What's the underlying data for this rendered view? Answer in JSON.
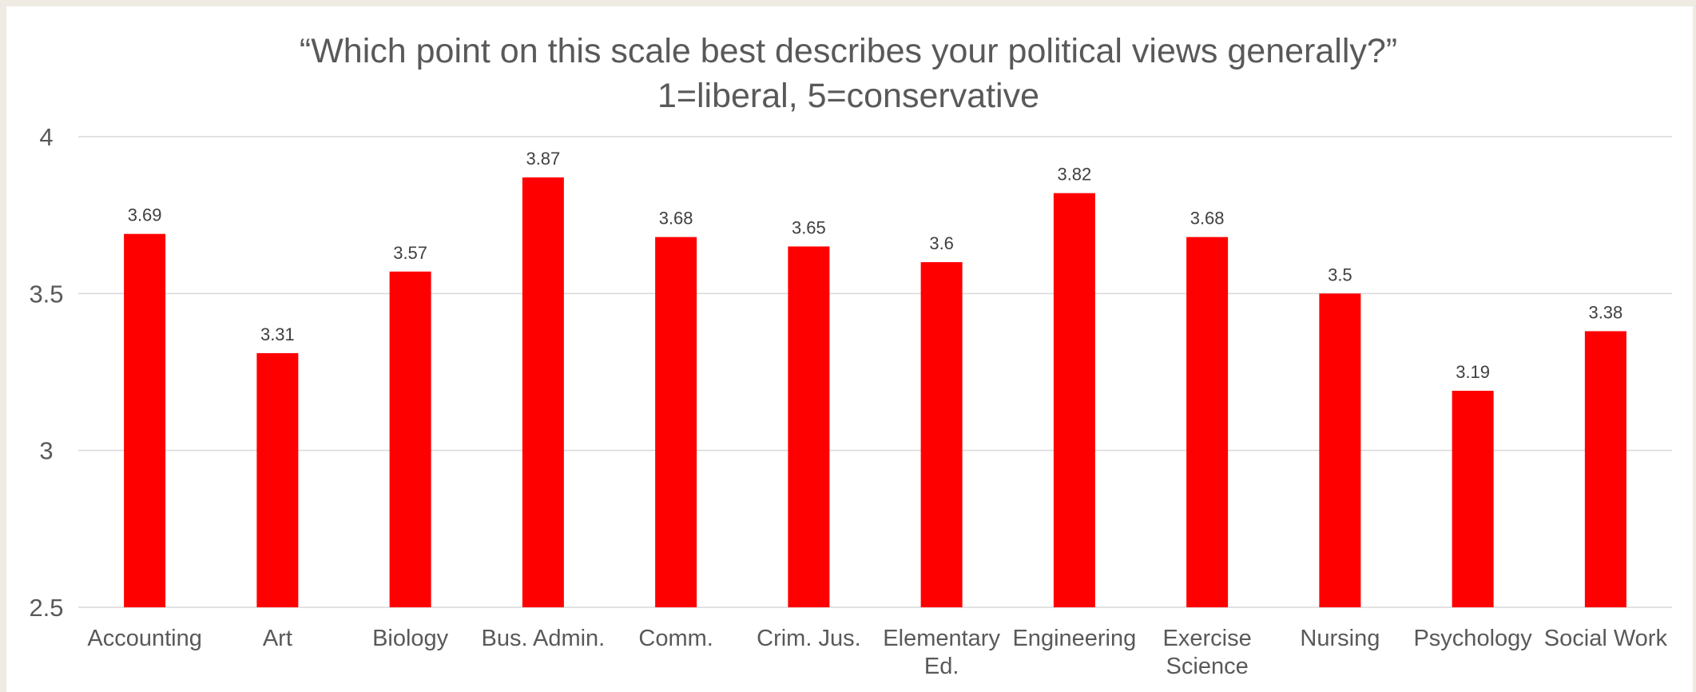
{
  "colors": {
    "bar": "#ff0000",
    "grid": "#d9d9d9",
    "text": "#595959",
    "frame": "#efebe3"
  },
  "chart_data": {
    "type": "bar",
    "title_lines": [
      "“Which point on this scale best describes your political views generally?”",
      "1=liberal, 5=conservative"
    ],
    "categories": [
      [
        "Accounting"
      ],
      [
        "Art"
      ],
      [
        "Biology"
      ],
      [
        "Bus. Admin."
      ],
      [
        "Comm."
      ],
      [
        "Crim. Jus."
      ],
      [
        "Elementary",
        "Ed."
      ],
      [
        "Engineering"
      ],
      [
        "Exercise",
        "Science"
      ],
      [
        "Nursing"
      ],
      [
        "Psychology"
      ],
      [
        "Social Work"
      ]
    ],
    "values": [
      3.69,
      3.31,
      3.57,
      3.87,
      3.68,
      3.65,
      3.6,
      3.82,
      3.68,
      3.5,
      3.19,
      3.38
    ],
    "data_labels": [
      "3.69",
      "3.31",
      "3.57",
      "3.87",
      "3.68",
      "3.65",
      "3.6",
      "3.82",
      "3.68",
      "3.5",
      "3.19",
      "3.38"
    ],
    "ylim": [
      2.5,
      4
    ],
    "yticks": [
      2.5,
      3,
      3.5,
      4
    ],
    "ytick_labels": [
      "2.5",
      "3",
      "3.5",
      "4"
    ],
    "grid": true,
    "legend": "none"
  }
}
